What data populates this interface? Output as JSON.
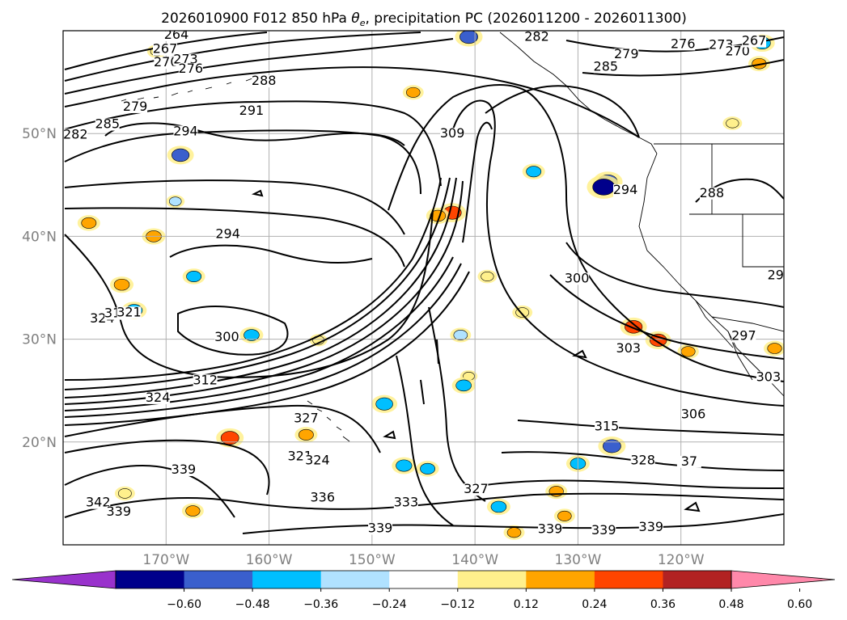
{
  "chart_data": {
    "type": "contour_map",
    "title_main": "2026010900 F012 850 hPa ",
    "title_symbol": "θ",
    "title_sub": "e",
    "title_tail": ", precipitation PC (2026011200 - 2026011300)",
    "longitudes": [
      {
        "value": -170,
        "label": "170°W"
      },
      {
        "value": -160,
        "label": "160°W"
      },
      {
        "value": -150,
        "label": "150°W"
      },
      {
        "value": -140,
        "label": "140°W"
      },
      {
        "value": -130,
        "label": "130°W"
      },
      {
        "value": -120,
        "label": "120°W"
      }
    ],
    "latitudes": [
      {
        "value": 20,
        "label": "20°N"
      },
      {
        "value": 30,
        "label": "30°N"
      },
      {
        "value": 40,
        "label": "40°N"
      },
      {
        "value": 50,
        "label": "50°N"
      }
    ],
    "extent": {
      "lon_min": -180,
      "lon_max": -110,
      "lat_min": 10,
      "lat_max": 60
    },
    "contour_labels": [
      {
        "text": "264",
        "lon": -169.0,
        "lat": 59.3
      },
      {
        "text": "267",
        "lon": -170.1,
        "lat": 57.9
      },
      {
        "text": "270",
        "lon": -170.0,
        "lat": 56.6
      },
      {
        "text": "273",
        "lon": -168.1,
        "lat": 56.9
      },
      {
        "text": "276",
        "lon": -167.6,
        "lat": 56.0
      },
      {
        "text": "279",
        "lon": -173.0,
        "lat": 52.3
      },
      {
        "text": "282",
        "lon": -178.8,
        "lat": 49.6
      },
      {
        "text": "285",
        "lon": -175.7,
        "lat": 50.6
      },
      {
        "text": "288",
        "lon": -160.5,
        "lat": 54.8
      },
      {
        "text": "291",
        "lon": -161.7,
        "lat": 51.9
      },
      {
        "text": "294",
        "lon": -168.1,
        "lat": 49.9
      },
      {
        "text": "294",
        "lon": -164.0,
        "lat": 39.9
      },
      {
        "text": "300",
        "lon": -164.1,
        "lat": 29.9
      },
      {
        "text": "312",
        "lon": -166.2,
        "lat": 25.7
      },
      {
        "text": "324",
        "lon": -170.8,
        "lat": 24.0
      },
      {
        "text": "324",
        "lon": -176.2,
        "lat": 31.7
      },
      {
        "text": "318",
        "lon": -174.8,
        "lat": 32.2
      },
      {
        "text": "321",
        "lon": -173.6,
        "lat": 32.3
      },
      {
        "text": "327",
        "lon": -156.4,
        "lat": 22.0
      },
      {
        "text": "321",
        "lon": -157.0,
        "lat": 18.3
      },
      {
        "text": "324",
        "lon": -155.3,
        "lat": 17.9
      },
      {
        "text": "339",
        "lon": -168.3,
        "lat": 17.0
      },
      {
        "text": "342",
        "lon": -176.6,
        "lat": 13.8
      },
      {
        "text": "339",
        "lon": -174.6,
        "lat": 12.9
      },
      {
        "text": "336",
        "lon": -154.8,
        "lat": 14.3
      },
      {
        "text": "333",
        "lon": -146.7,
        "lat": 13.8
      },
      {
        "text": "339",
        "lon": -149.2,
        "lat": 11.3
      },
      {
        "text": "327",
        "lon": -139.9,
        "lat": 15.1
      },
      {
        "text": "339",
        "lon": -132.7,
        "lat": 11.2
      },
      {
        "text": "339",
        "lon": -127.5,
        "lat": 11.1
      },
      {
        "text": "339",
        "lon": -122.9,
        "lat": 11.4
      },
      {
        "text": "328",
        "lon": -123.7,
        "lat": 17.9
      },
      {
        "text": "315",
        "lon": -127.2,
        "lat": 21.2
      },
      {
        "text": "37",
        "lon": -119.2,
        "lat": 17.8
      },
      {
        "text": "306",
        "lon": -118.8,
        "lat": 22.4
      },
      {
        "text": "303",
        "lon": -125.1,
        "lat": 28.8
      },
      {
        "text": "300",
        "lon": -130.1,
        "lat": 35.6
      },
      {
        "text": "297",
        "lon": -113.9,
        "lat": 30.0
      },
      {
        "text": "29",
        "lon": -110.8,
        "lat": 35.9
      },
      {
        "text": "303",
        "lon": -111.5,
        "lat": 26.0
      },
      {
        "text": "294",
        "lon": -125.4,
        "lat": 44.2
      },
      {
        "text": "288",
        "lon": -117.0,
        "lat": 43.9
      },
      {
        "text": "309",
        "lon": -142.2,
        "lat": 49.7
      },
      {
        "text": "282",
        "lon": -134.0,
        "lat": 59.1
      },
      {
        "text": "279",
        "lon": -125.3,
        "lat": 57.4
      },
      {
        "text": "285",
        "lon": -127.3,
        "lat": 56.2
      },
      {
        "text": "276",
        "lon": -119.8,
        "lat": 58.4
      },
      {
        "text": "273",
        "lon": -116.1,
        "lat": 58.3
      },
      {
        "text": "270",
        "lon": -114.5,
        "lat": 57.7
      },
      {
        "text": "267",
        "lon": -112.9,
        "lat": 58.7
      }
    ],
    "colorbar": {
      "extend": "both",
      "ticks": [
        "−0.60",
        "−0.48",
        "−0.36",
        "−0.24",
        "−0.12",
        "0.12",
        "0.24",
        "0.36",
        "0.48",
        "0.60"
      ],
      "colors": [
        "#9932cc",
        "#00008b",
        "#3a5fcd",
        "#00bfff",
        "#b0e2ff",
        "#ffffff",
        "#fff08c",
        "#ffa500",
        "#ff4500",
        "#b22222",
        "#ff88aa"
      ]
    },
    "precip_patches": [
      {
        "lon": -142.2,
        "lat": 42.3,
        "value": 0.4
      },
      {
        "lon": -143.6,
        "lat": 42.0,
        "value": 0.3
      },
      {
        "lon": -124.6,
        "lat": 31.2,
        "value": 0.38
      },
      {
        "lon": -122.2,
        "lat": 29.9,
        "value": 0.36
      },
      {
        "lon": -119.3,
        "lat": 28.8,
        "value": 0.25
      },
      {
        "lon": -177.5,
        "lat": 41.3,
        "value": 0.28
      },
      {
        "lon": -171.2,
        "lat": 40.0,
        "value": 0.3
      },
      {
        "lon": -174.3,
        "lat": 35.3,
        "value": 0.3
      },
      {
        "lon": -163.8,
        "lat": 20.4,
        "value": 0.4
      },
      {
        "lon": -156.4,
        "lat": 20.7,
        "value": 0.28
      },
      {
        "lon": -132.1,
        "lat": 15.2,
        "value": 0.26
      },
      {
        "lon": -131.3,
        "lat": 12.8,
        "value": 0.24
      },
      {
        "lon": -136.2,
        "lat": 11.2,
        "value": 0.24
      },
      {
        "lon": -167.4,
        "lat": 13.3,
        "value": 0.26
      },
      {
        "lon": -174.0,
        "lat": 15.0,
        "value": 0.22
      },
      {
        "lon": -146.0,
        "lat": 54.0,
        "value": 0.24
      },
      {
        "lon": -112.4,
        "lat": 56.8,
        "value": 0.26
      },
      {
        "lon": -110.9,
        "lat": 29.1,
        "value": 0.26
      },
      {
        "lon": -115.0,
        "lat": 51.0,
        "value": 0.2
      },
      {
        "lon": -135.4,
        "lat": 32.6,
        "value": 0.22
      },
      {
        "lon": -140.6,
        "lat": 26.4,
        "value": 0.15
      },
      {
        "lon": -138.8,
        "lat": 36.1,
        "value": 0.2
      },
      {
        "lon": -155.2,
        "lat": 29.9,
        "value": 0.16
      },
      {
        "lon": -170.9,
        "lat": 58.0,
        "value": 0.2
      },
      {
        "lon": -168.6,
        "lat": 47.9,
        "value": -0.38
      },
      {
        "lon": -161.7,
        "lat": 30.4,
        "value": -0.3
      },
      {
        "lon": -148.8,
        "lat": 23.7,
        "value": -0.36
      },
      {
        "lon": -141.1,
        "lat": 25.5,
        "value": -0.3
      },
      {
        "lon": -141.4,
        "lat": 30.4,
        "value": -0.24
      },
      {
        "lon": -146.9,
        "lat": 17.7,
        "value": -0.32
      },
      {
        "lon": -144.6,
        "lat": 17.4,
        "value": -0.28
      },
      {
        "lon": -137.7,
        "lat": 13.7,
        "value": -0.3
      },
      {
        "lon": -126.7,
        "lat": 19.6,
        "value": -0.4
      },
      {
        "lon": -134.3,
        "lat": 46.3,
        "value": -0.28
      },
      {
        "lon": -127.1,
        "lat": 45.3,
        "value": -0.45
      },
      {
        "lon": -127.5,
        "lat": 44.8,
        "value": -0.55
      },
      {
        "lon": -173.1,
        "lat": 32.8,
        "value": -0.34
      },
      {
        "lon": -167.3,
        "lat": 36.1,
        "value": -0.28
      },
      {
        "lon": -169.1,
        "lat": 43.4,
        "value": -0.18
      },
      {
        "lon": -130.0,
        "lat": 17.9,
        "value": -0.3
      },
      {
        "lon": -140.6,
        "lat": 59.4,
        "value": -0.4
      },
      {
        "lon": -112.1,
        "lat": 58.8,
        "value": -0.34
      }
    ]
  }
}
